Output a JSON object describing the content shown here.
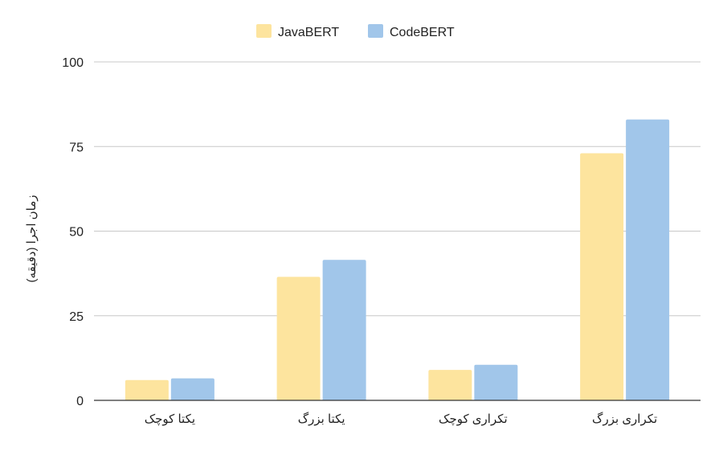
{
  "chart_data": {
    "type": "bar",
    "categories": [
      "یکتا کوچک",
      "یکتا بزرگ",
      "تکراری کوچک",
      "تکراری بزرگ"
    ],
    "series": [
      {
        "name": "JavaBERT",
        "color": "#FDE49E",
        "values": [
          6,
          36.5,
          9,
          73
        ]
      },
      {
        "name": "CodeBERT",
        "color": "#A1C6EA",
        "values": [
          6.5,
          41.5,
          10.5,
          83
        ]
      }
    ],
    "ylabel": "زمان اجرا (دقیقه)",
    "ylim": [
      0,
      100
    ],
    "yticks": [
      0,
      25,
      50,
      75,
      100
    ],
    "grid": true,
    "legend_position": "top"
  }
}
